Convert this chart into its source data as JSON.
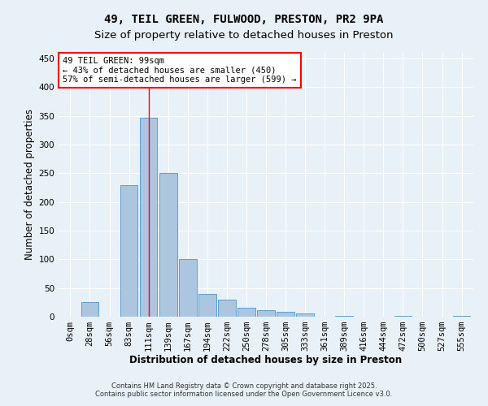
{
  "title1": "49, TEIL GREEN, FULWOOD, PRESTON, PR2 9PA",
  "title2": "Size of property relative to detached houses in Preston",
  "xlabel": "Distribution of detached houses by size in Preston",
  "ylabel": "Number of detached properties",
  "bar_labels": [
    "0sqm",
    "28sqm",
    "56sqm",
    "83sqm",
    "111sqm",
    "139sqm",
    "167sqm",
    "194sqm",
    "222sqm",
    "250sqm",
    "278sqm",
    "305sqm",
    "333sqm",
    "361sqm",
    "389sqm",
    "416sqm",
    "444sqm",
    "472sqm",
    "500sqm",
    "527sqm",
    "555sqm"
  ],
  "bar_values": [
    0,
    25,
    0,
    230,
    347,
    250,
    100,
    40,
    30,
    15,
    12,
    9,
    5,
    0,
    2,
    0,
    0,
    2,
    0,
    0,
    2
  ],
  "bar_color": "#adc6e0",
  "bar_edge_color": "#5a9fd4",
  "background_color": "#e8f0f8",
  "grid_color": "#ffffff",
  "ylim": [
    0,
    460
  ],
  "yticks": [
    0,
    50,
    100,
    150,
    200,
    250,
    300,
    350,
    400,
    450
  ],
  "red_line_x": 4.0,
  "annotation_text": "49 TEIL GREEN: 99sqm\n← 43% of detached houses are smaller (450)\n57% of semi-detached houses are larger (599) →",
  "annotation_fontsize": 7.5,
  "footer_text1": "Contains HM Land Registry data © Crown copyright and database right 2025.",
  "footer_text2": "Contains public sector information licensed under the Open Government Licence v3.0.",
  "title1_fontsize": 10,
  "title2_fontsize": 9.5,
  "xlabel_fontsize": 8.5,
  "ylabel_fontsize": 8.5,
  "tick_fontsize": 7.5
}
